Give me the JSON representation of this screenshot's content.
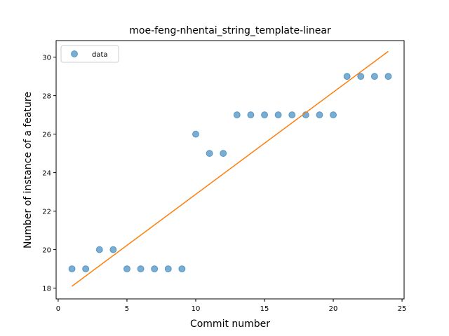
{
  "chart_data": {
    "type": "scatter",
    "title": "moe-feng-nhentai_string_template-linear",
    "xlabel": "Commit number",
    "ylabel": "Number of instance of a feature",
    "xlim": [
      -0.15,
      25.15
    ],
    "ylim": [
      17.44,
      30.86
    ],
    "xticks": [
      0,
      5,
      10,
      15,
      20,
      25
    ],
    "yticks": [
      18,
      20,
      22,
      24,
      26,
      28,
      30
    ],
    "legend_position": "upper-left",
    "grid": false,
    "series": [
      {
        "name": "data",
        "kind": "scatter",
        "color": "#1f77b4",
        "x": [
          1,
          2,
          3,
          4,
          5,
          6,
          7,
          8,
          9,
          10,
          11,
          12,
          13,
          14,
          15,
          16,
          17,
          18,
          19,
          20,
          21,
          22,
          23,
          24
        ],
        "y": [
          19,
          19,
          20,
          20,
          19,
          19,
          19,
          19,
          19,
          26,
          25,
          25,
          27,
          27,
          27,
          27,
          27,
          27,
          27,
          27,
          29,
          29,
          29,
          29
        ]
      },
      {
        "kind": "line",
        "color": "#ff7f0e",
        "x": [
          1,
          24
        ],
        "y": [
          18.1,
          30.3
        ]
      }
    ]
  }
}
